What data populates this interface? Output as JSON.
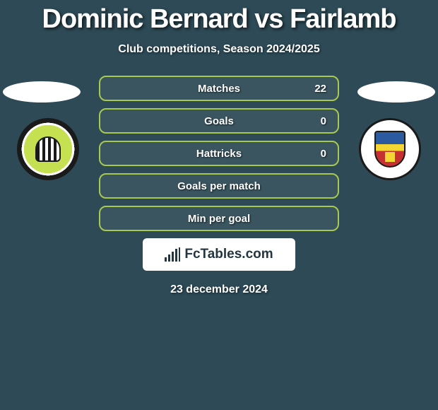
{
  "title": "Dominic Bernard vs Fairlamb",
  "subtitle": "Club competitions, Season 2024/2025",
  "date": "23 december 2024",
  "logo_text": "FcTables.com",
  "colors": {
    "background": "#2d4a56",
    "stat_border": "#a7c94f",
    "text": "#ffffff"
  },
  "stats": [
    {
      "label": "Matches",
      "value": "22",
      "show_value": true
    },
    {
      "label": "Goals",
      "value": "0",
      "show_value": true
    },
    {
      "label": "Hattricks",
      "value": "0",
      "show_value": true
    },
    {
      "label": "Goals per match",
      "value": "",
      "show_value": false
    },
    {
      "label": "Min per goal",
      "value": "",
      "show_value": false
    }
  ],
  "left_club": "Forest Green Rovers",
  "right_club": "Tamworth"
}
